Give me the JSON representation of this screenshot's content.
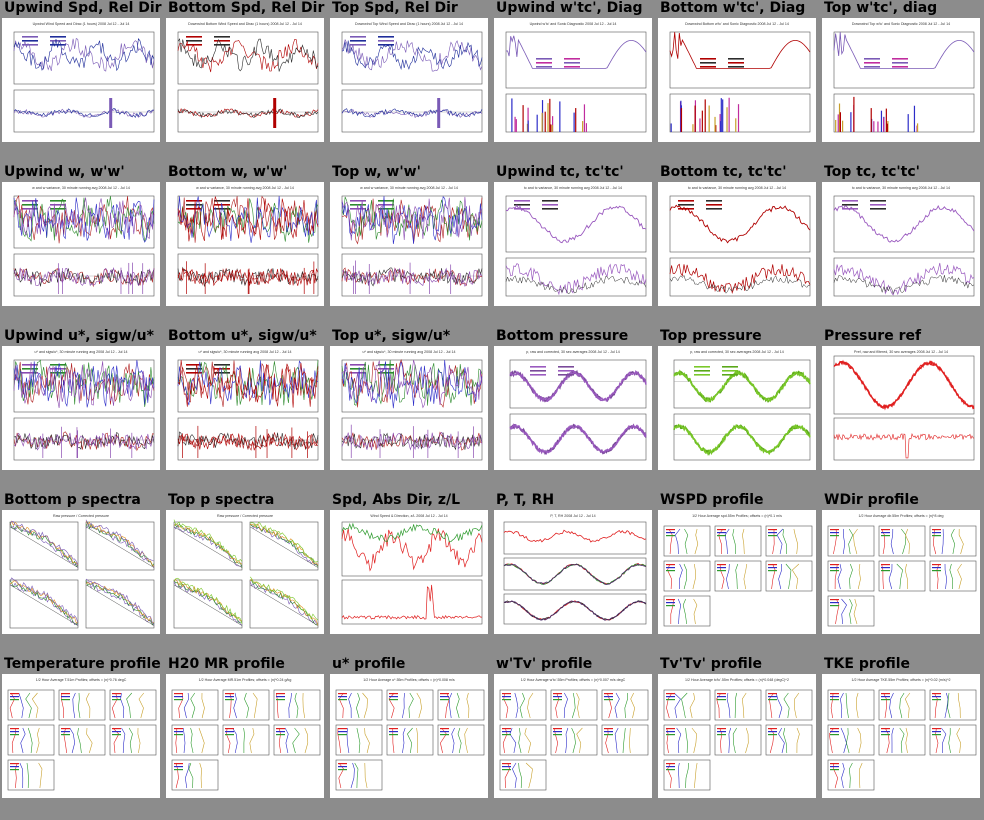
{
  "rows": [
    [
      {
        "title": "Upwind Spd, Rel Dir",
        "kind": "ts",
        "colors": [
          "#7a5ab6",
          "#1f2d9a"
        ],
        "caption": "Upwind Wind Speed and Dirac (1 hours) 2008 Jul 12 - Jul 14"
      },
      {
        "title": "Bottom Spd, Rel Dir",
        "kind": "ts",
        "colors": [
          "#b00000",
          "#2c2c2c"
        ],
        "caption": "Downwind Bottom Wind Speed and Dirac (1 hours) 2008 Jul 12 - Jul 14"
      },
      {
        "title": "Top Spd, Rel Dir",
        "kind": "ts",
        "colors": [
          "#7a5ab6",
          "#1f2d9a"
        ],
        "caption": "Downwind Top Wind Speed and Dirac (1 hours) 2008 Jul 12 - Jul 14"
      },
      {
        "title": "Upwind w'tc', Diag",
        "kind": "diag",
        "colors": [
          "#7a5ab6",
          "#c02c9e"
        ],
        "caption": "Upwind w'tc' and Sonic Diagnostic 2008 Jul 12 - Jul 14"
      },
      {
        "title": "Bottom w'tc', Diag",
        "kind": "diag",
        "colors": [
          "#b00000",
          "#2c2c2c"
        ],
        "caption": "Downwind Bottom w'tc' and Sonic Diagnostic 2008 Jul 12 - Jul 14"
      },
      {
        "title": "Top w'tc', diag",
        "kind": "diag",
        "colors": [
          "#7a5ab6",
          "#c02c9e"
        ],
        "caption": "Downwind Top w'tc' and Sonic Diagnostic 2008 Jul 12 - Jul 14"
      }
    ],
    [
      {
        "title": "Upwind w, w'w'",
        "kind": "noisy",
        "colors": [
          "#8a4ab0",
          "#2c8a2c"
        ],
        "caption": "w and w variance, 30 minute running avg 2008 Jul 12 - Jul 14"
      },
      {
        "title": "Bottom w, w'w'",
        "kind": "noisy",
        "colors": [
          "#b00000",
          "#2c2c2c"
        ],
        "caption": "w and w variance, 30 minute running avg 2008 Jul 12 - Jul 14"
      },
      {
        "title": "Top w, w'w'",
        "kind": "noisy",
        "colors": [
          "#8a4ab0",
          "#2c8a2c"
        ],
        "caption": "w and w variance, 30 minute running avg 2008 Jul 12 - Jul 14"
      },
      {
        "title": "Upwind tc, tc'tc'",
        "kind": "wave",
        "colors": [
          "#9a5abf",
          "#2c2c2c"
        ],
        "caption": "tc and tc variance, 30 minute running avg 2008 Jul 12 - Jul 14"
      },
      {
        "title": "Bottom tc, tc'tc'",
        "kind": "wave",
        "colors": [
          "#b00000",
          "#2c2c2c"
        ],
        "caption": "tc and tc variance, 30 minute running avg 2008 Jul 12 - Jul 14"
      },
      {
        "title": "Top tc, tc'tc'",
        "kind": "wave",
        "colors": [
          "#9a5abf",
          "#2c2c2c"
        ],
        "caption": "tc and tc variance, 30 minute running avg 2008 Jul 12 - Jul 14"
      }
    ],
    [
      {
        "title": "Upwind u*, sigw/u*",
        "kind": "noisy",
        "colors": [
          "#8a4ab0",
          "#2c8a2c"
        ],
        "caption": "u* and sigw/u*, 30 minute running avg 2008 Jul 12 - Jul 14"
      },
      {
        "title": "Bottom u*, sigw/u*",
        "kind": "noisy",
        "colors": [
          "#b00000",
          "#2c2c2c"
        ],
        "caption": "u* and sigw/u*, 30 minute running avg 2008 Jul 12 - Jul 14"
      },
      {
        "title": "Top u*, sigw/u*",
        "kind": "noisy",
        "colors": [
          "#8a4ab0",
          "#2c8a2c"
        ],
        "caption": "u* and sigw/u*, 30 minute running avg 2008 Jul 12 - Jul 14"
      },
      {
        "title": "Bottom pressure",
        "kind": "press",
        "colors": [
          "#9a5abf",
          "#7a4a9a"
        ],
        "caption": "p, raw and corrected, 30 sec averages 2008 Jul 12 - Jul 14"
      },
      {
        "title": "Top pressure",
        "kind": "press",
        "colors": [
          "#7ac82a",
          "#5aa81a"
        ],
        "caption": "p, raw and corrected, 30 sec averages 2008 Jul 12 - Jul 14"
      },
      {
        "title": "Pressure ref",
        "kind": "pref",
        "colors": [
          "#e02020",
          "#e02020"
        ],
        "caption": "Pref, raw and filtered, 30 sec averages 2008 Jul 12 - Jul 14"
      }
    ],
    [
      {
        "title": "Bottom p spectra",
        "kind": "spectra",
        "colors": [
          "#7a5ab6",
          "#2c2c2c"
        ],
        "caption": "Raw pressure / Corrected pressure"
      },
      {
        "title": "Top p spectra",
        "kind": "spectra",
        "colors": [
          "#7ac82a",
          "#2c2c2c"
        ],
        "caption": "Raw pressure / Corrected pressure"
      },
      {
        "title": "Spd, Abs Dir, z/L",
        "kind": "spd",
        "colors": [
          "#e02020",
          "#2c9a2c"
        ],
        "caption": "Wind Speed & Direction, z/L 2008 Jul 12 - Jul 14"
      },
      {
        "title": "P, T, RH",
        "kind": "ptrh",
        "colors": [
          "#e02020",
          "#4a2c6a"
        ],
        "caption": "P, T, RH 2008 Jul 12 - Jul 14"
      },
      {
        "title": "WSPD profile",
        "kind": "profile",
        "colors": [
          "#e02020",
          "#2c2cc8",
          "#2c9a2c",
          "#c8a02c"
        ],
        "caption": "1/2 Hour Average spd.55m Profiles; offsets = (n)*0.1 m/s"
      },
      {
        "title": "WDir profile",
        "kind": "profile",
        "colors": [
          "#e02020",
          "#2c2cc8",
          "#2c9a2c",
          "#c8a02c"
        ],
        "caption": "1/2 Hour Average dir.55m Profiles; offsets = (n)*8 deg"
      }
    ],
    [
      {
        "title": "Temperature profile",
        "kind": "profile",
        "colors": [
          "#e02020",
          "#2c2cc8",
          "#2c9a2c",
          "#c8a02c"
        ],
        "caption": "1/2 Hour Average T.51m Profiles; offsets = (n)*0.76 degC"
      },
      {
        "title": "H20 MR profile",
        "kind": "profile",
        "colors": [
          "#e02020",
          "#2c2cc8",
          "#2c9a2c",
          "#c8a02c"
        ],
        "caption": "1/2 Hour Average MR.51m Profiles; offsets = (n)*0.24 g/kg"
      },
      {
        "title": "u* profile",
        "kind": "profile",
        "colors": [
          "#e02020",
          "#2c2cc8",
          "#2c9a2c",
          "#c8a02c"
        ],
        "caption": "1/2 Hour Average u*.55m Profiles; offsets = (n)*0.008 m/s"
      },
      {
        "title": "w'Tv' profile",
        "kind": "profile",
        "colors": [
          "#e02020",
          "#2c2cc8",
          "#2c9a2c",
          "#c8a02c"
        ],
        "caption": "1/2 Hour Average w'tc'.55m Profiles; offsets = (n)*0.007 m/s degC"
      },
      {
        "title": "Tv'Tv' profile",
        "kind": "profile",
        "colors": [
          "#e02020",
          "#2c2cc8",
          "#2c9a2c",
          "#c8a02c"
        ],
        "caption": "1/2 Hour Average tc'tc'.55m Profiles; offsets = (n)*0.048 (degC)^2"
      },
      {
        "title": "TKE profile",
        "kind": "profile",
        "colors": [
          "#e02020",
          "#2c2cc8",
          "#2c9a2c",
          "#c8a02c"
        ],
        "caption": "1/2 Hour Average TKE.55m Profiles; offsets = (n)*0.02 (m/s)^2"
      }
    ]
  ]
}
